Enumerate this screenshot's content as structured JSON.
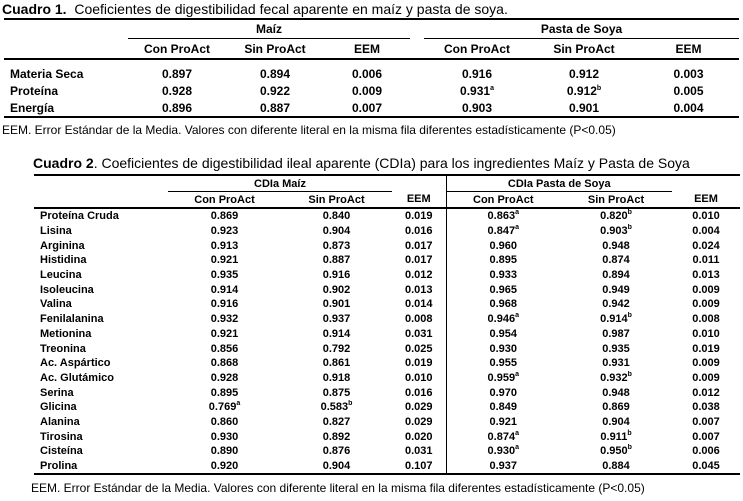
{
  "table1": {
    "caption_label": "Cuadro 1.",
    "caption_text": "Coeficientes de digestibilidad fecal aparente en maíz y pasta de soya.",
    "group_a": "Maíz",
    "group_b": "Pasta de Soya",
    "columns": [
      "Con ProAct",
      "Sin ProAct",
      "EEM",
      "Con ProAct",
      "Sin ProAct",
      "EEM"
    ],
    "rows": [
      {
        "label": "Materia Seca",
        "cells": [
          {
            "v": "0.897",
            "s": ""
          },
          {
            "v": "0.894",
            "s": ""
          },
          {
            "v": "0.006",
            "s": ""
          },
          {
            "v": "0.916",
            "s": ""
          },
          {
            "v": "0.912",
            "s": ""
          },
          {
            "v": "0.003",
            "s": ""
          }
        ]
      },
      {
        "label": "Proteína",
        "cells": [
          {
            "v": "0.928",
            "s": ""
          },
          {
            "v": "0.922",
            "s": ""
          },
          {
            "v": "0.009",
            "s": ""
          },
          {
            "v": "0.931",
            "s": "a"
          },
          {
            "v": "0.912",
            "s": "b"
          },
          {
            "v": "0.005",
            "s": ""
          }
        ]
      },
      {
        "label": "Energía",
        "cells": [
          {
            "v": "0.896",
            "s": ""
          },
          {
            "v": "0.887",
            "s": ""
          },
          {
            "v": "0.007",
            "s": ""
          },
          {
            "v": "0.903",
            "s": ""
          },
          {
            "v": "0.901",
            "s": ""
          },
          {
            "v": "0.004",
            "s": ""
          }
        ]
      }
    ],
    "note": "EEM. Error Estándar de la Media. Valores con diferente literal en la misma fila diferentes estadísticamente (P<0.05)"
  },
  "table2": {
    "caption_label": "Cuadro 2",
    "caption_text": ". Coeficientes de digestibilidad ileal aparente (CDIa) para los ingredientes Maíz y Pasta de Soya",
    "group_a": "CDIa Maíz",
    "group_b": "CDIa Pasta de Soya",
    "columns": [
      "Con ProAct",
      "Sin ProAct",
      "EEM",
      "Con ProAct",
      "Sin ProAct",
      "EEM"
    ],
    "rows": [
      {
        "label": "Proteína Cruda",
        "cells": [
          {
            "v": "0.869",
            "s": ""
          },
          {
            "v": "0.840",
            "s": ""
          },
          {
            "v": "0.019",
            "s": ""
          },
          {
            "v": "0.863",
            "s": "a"
          },
          {
            "v": "0.820",
            "s": "b"
          },
          {
            "v": "0.010",
            "s": ""
          }
        ]
      },
      {
        "label": "Lisina",
        "cells": [
          {
            "v": "0.923",
            "s": ""
          },
          {
            "v": "0.904",
            "s": ""
          },
          {
            "v": "0.016",
            "s": ""
          },
          {
            "v": "0.847",
            "s": "a"
          },
          {
            "v": "0.903",
            "s": "b"
          },
          {
            "v": "0.004",
            "s": ""
          }
        ]
      },
      {
        "label": "Arginina",
        "cells": [
          {
            "v": "0.913",
            "s": ""
          },
          {
            "v": "0.873",
            "s": ""
          },
          {
            "v": "0.017",
            "s": ""
          },
          {
            "v": "0.960",
            "s": ""
          },
          {
            "v": "0.948",
            "s": ""
          },
          {
            "v": "0.024",
            "s": ""
          }
        ]
      },
      {
        "label": "Histidina",
        "cells": [
          {
            "v": "0.921",
            "s": ""
          },
          {
            "v": "0.887",
            "s": ""
          },
          {
            "v": "0.017",
            "s": ""
          },
          {
            "v": "0.895",
            "s": ""
          },
          {
            "v": "0.874",
            "s": ""
          },
          {
            "v": "0.011",
            "s": ""
          }
        ]
      },
      {
        "label": "Leucina",
        "cells": [
          {
            "v": "0.935",
            "s": ""
          },
          {
            "v": "0.916",
            "s": ""
          },
          {
            "v": "0.012",
            "s": ""
          },
          {
            "v": "0.933",
            "s": ""
          },
          {
            "v": "0.894",
            "s": ""
          },
          {
            "v": "0.013",
            "s": ""
          }
        ]
      },
      {
        "label": "Isoleucina",
        "cells": [
          {
            "v": "0.914",
            "s": ""
          },
          {
            "v": "0.902",
            "s": ""
          },
          {
            "v": "0.013",
            "s": ""
          },
          {
            "v": "0.965",
            "s": ""
          },
          {
            "v": "0.949",
            "s": ""
          },
          {
            "v": "0.009",
            "s": ""
          }
        ]
      },
      {
        "label": "Valina",
        "cells": [
          {
            "v": "0.916",
            "s": ""
          },
          {
            "v": "0.901",
            "s": ""
          },
          {
            "v": "0.014",
            "s": ""
          },
          {
            "v": "0.968",
            "s": ""
          },
          {
            "v": "0.942",
            "s": ""
          },
          {
            "v": "0.009",
            "s": ""
          }
        ]
      },
      {
        "label": "Fenilalanina",
        "cells": [
          {
            "v": "0.932",
            "s": ""
          },
          {
            "v": "0.937",
            "s": ""
          },
          {
            "v": "0.008",
            "s": ""
          },
          {
            "v": "0.946",
            "s": "a"
          },
          {
            "v": "0.914",
            "s": "b"
          },
          {
            "v": "0.008",
            "s": ""
          }
        ]
      },
      {
        "label": "Metionina",
        "cells": [
          {
            "v": "0.921",
            "s": ""
          },
          {
            "v": "0.914",
            "s": ""
          },
          {
            "v": "0.031",
            "s": ""
          },
          {
            "v": "0.954",
            "s": ""
          },
          {
            "v": "0.987",
            "s": ""
          },
          {
            "v": "0.010",
            "s": ""
          }
        ]
      },
      {
        "label": "Treonina",
        "cells": [
          {
            "v": "0.856",
            "s": ""
          },
          {
            "v": "0.792",
            "s": ""
          },
          {
            "v": "0.025",
            "s": ""
          },
          {
            "v": "0.930",
            "s": ""
          },
          {
            "v": "0.935",
            "s": ""
          },
          {
            "v": "0.019",
            "s": ""
          }
        ]
      },
      {
        "label": "Ac. Aspártico",
        "cells": [
          {
            "v": "0.868",
            "s": ""
          },
          {
            "v": "0.861",
            "s": ""
          },
          {
            "v": "0.019",
            "s": ""
          },
          {
            "v": "0.955",
            "s": ""
          },
          {
            "v": "0.931",
            "s": ""
          },
          {
            "v": "0.009",
            "s": ""
          }
        ]
      },
      {
        "label": "Ac. Glutámico",
        "cells": [
          {
            "v": "0.928",
            "s": ""
          },
          {
            "v": "0.918",
            "s": ""
          },
          {
            "v": "0.010",
            "s": ""
          },
          {
            "v": "0.959",
            "s": "a"
          },
          {
            "v": "0.932",
            "s": "b"
          },
          {
            "v": "0.009",
            "s": ""
          }
        ]
      },
      {
        "label": "Serina",
        "cells": [
          {
            "v": "0.895",
            "s": ""
          },
          {
            "v": "0.875",
            "s": ""
          },
          {
            "v": "0.016",
            "s": ""
          },
          {
            "v": "0.970",
            "s": ""
          },
          {
            "v": "0.948",
            "s": ""
          },
          {
            "v": "0.012",
            "s": ""
          }
        ]
      },
      {
        "label": "Glicina",
        "cells": [
          {
            "v": "0.769",
            "s": "a"
          },
          {
            "v": "0.583",
            "s": "b"
          },
          {
            "v": "0.029",
            "s": ""
          },
          {
            "v": "0.849",
            "s": ""
          },
          {
            "v": "0.869",
            "s": ""
          },
          {
            "v": "0.038",
            "s": ""
          }
        ]
      },
      {
        "label": "Alanina",
        "cells": [
          {
            "v": "0.860",
            "s": ""
          },
          {
            "v": "0.827",
            "s": ""
          },
          {
            "v": "0.029",
            "s": ""
          },
          {
            "v": "0.921",
            "s": ""
          },
          {
            "v": "0.904",
            "s": ""
          },
          {
            "v": "0.007",
            "s": ""
          }
        ]
      },
      {
        "label": "Tirosina",
        "cells": [
          {
            "v": "0.930",
            "s": ""
          },
          {
            "v": "0.892",
            "s": ""
          },
          {
            "v": "0.020",
            "s": ""
          },
          {
            "v": "0.874",
            "s": "a"
          },
          {
            "v": "0.911",
            "s": "b"
          },
          {
            "v": "0.007",
            "s": ""
          }
        ]
      },
      {
        "label": "Cisteína",
        "cells": [
          {
            "v": "0.890",
            "s": ""
          },
          {
            "v": "0.876",
            "s": ""
          },
          {
            "v": "0.031",
            "s": ""
          },
          {
            "v": "0.930",
            "s": "a"
          },
          {
            "v": "0.950",
            "s": "b"
          },
          {
            "v": "0.006",
            "s": ""
          }
        ]
      },
      {
        "label": "Prolina",
        "cells": [
          {
            "v": "0.920",
            "s": ""
          },
          {
            "v": "0.904",
            "s": ""
          },
          {
            "v": "0.107",
            "s": ""
          },
          {
            "v": "0.937",
            "s": ""
          },
          {
            "v": "0.884",
            "s": ""
          },
          {
            "v": "0.045",
            "s": ""
          }
        ]
      }
    ],
    "note": "EEM. Error Estándar de la Media. Valores con diferente literal en la misma fila diferentes estadísticamente (P<0.05)"
  }
}
